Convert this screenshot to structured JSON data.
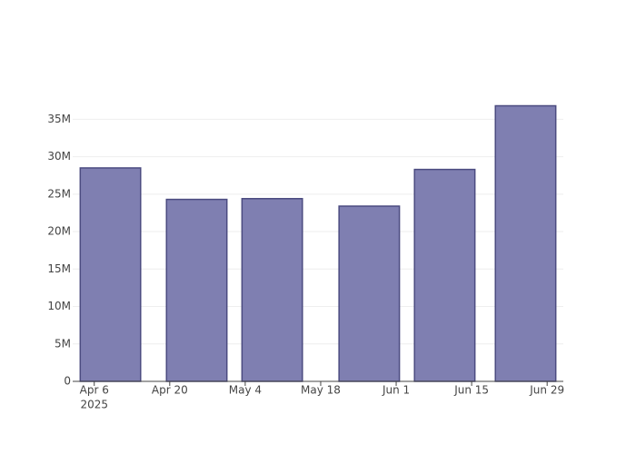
{
  "chart_data": {
    "type": "bar",
    "x": [
      "2025-04-09",
      "2025-04-25",
      "2025-05-09",
      "2025-05-27",
      "2025-06-10",
      "2025-06-25"
    ],
    "values": [
      28500000,
      24300000,
      24400000,
      23400000,
      28300000,
      36800000
    ],
    "color": "#7f7fb1",
    "edge_color": "#4b4b80",
    "xlim": [
      "2025-04-02",
      "2025-07-02"
    ],
    "xticks": [
      {
        "value": "2025-04-06",
        "label": "Apr 6"
      },
      {
        "value": "2025-04-20",
        "label": "Apr 20"
      },
      {
        "value": "2025-05-04",
        "label": "May 4"
      },
      {
        "value": "2025-05-18",
        "label": "May 18"
      },
      {
        "value": "2025-06-01",
        "label": "Jun 1"
      },
      {
        "value": "2025-06-15",
        "label": "Jun 15"
      },
      {
        "value": "2025-06-29",
        "label": "Jun 29"
      }
    ],
    "xtick_year": "2025",
    "ylim": [
      0,
      38800000
    ],
    "yticks": [
      0,
      {
        "value": 5000000,
        "label": "5M"
      },
      {
        "value": 10000000,
        "label": "10M"
      },
      {
        "value": 15000000,
        "label": "15M"
      },
      {
        "value": 20000000,
        "label": "20M"
      },
      {
        "value": 25000000,
        "label": "25M"
      },
      {
        "value": 30000000,
        "label": "30M"
      },
      {
        "value": 35000000,
        "label": "35M"
      }
    ],
    "grid": true
  }
}
